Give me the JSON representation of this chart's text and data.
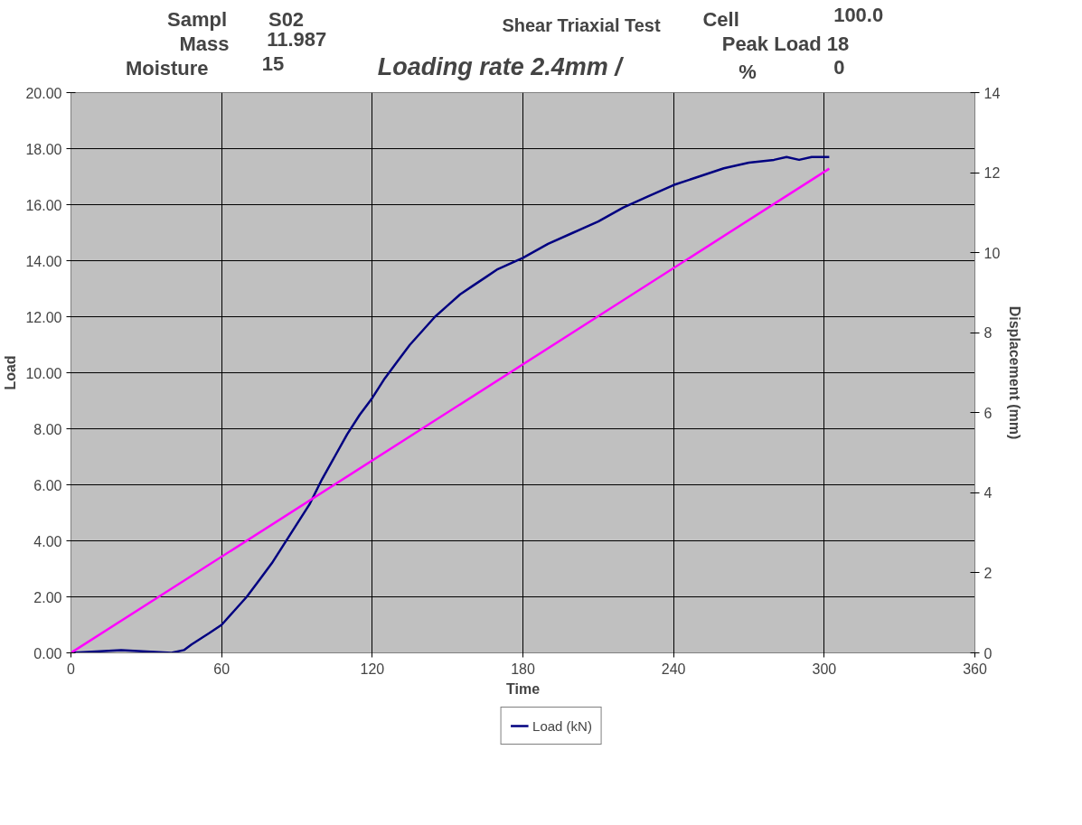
{
  "chart_data": {
    "type": "line",
    "title": "Loading rate 2.4mm /",
    "subtitle": "Shear Triaxial Test",
    "xlabel": "Time",
    "ylabel": "Load",
    "y2label": "Displacement (mm)",
    "annotations": [
      "Sampl",
      "S02",
      "Mass",
      "11.987",
      "Moisture",
      "15",
      "Cell",
      "100.0",
      "Peak Load 18",
      "%",
      "0"
    ],
    "series": [
      {
        "name": "Load (kN)",
        "color": "#000080",
        "x": [
          0,
          20,
          40,
          45,
          48,
          55,
          60,
          65,
          70,
          75,
          80,
          85,
          90,
          95,
          100,
          105,
          110,
          115,
          120,
          125,
          130,
          135,
          140,
          145,
          150,
          155,
          160,
          165,
          170,
          175,
          180,
          190,
          200,
          210,
          220,
          230,
          240,
          250,
          260,
          270,
          280,
          285,
          290,
          295,
          302
        ],
        "values": [
          0,
          0.1,
          0.0,
          0.1,
          0.3,
          0.7,
          1.0,
          1.5,
          2.0,
          2.6,
          3.2,
          3.9,
          4.6,
          5.3,
          6.2,
          7.0,
          7.8,
          8.5,
          9.1,
          9.8,
          10.4,
          11.0,
          11.5,
          12.0,
          12.4,
          12.8,
          13.1,
          13.4,
          13.7,
          13.9,
          14.1,
          14.6,
          15.0,
          15.4,
          15.9,
          16.3,
          16.7,
          17.0,
          17.3,
          17.5,
          17.6,
          17.7,
          17.6,
          17.7,
          17.7
        ]
      },
      {
        "color": "#ff00ff",
        "axis": "y2",
        "x": [
          0,
          302
        ],
        "values": [
          0,
          12.1
        ]
      }
    ],
    "xlim": [
      0,
      360
    ],
    "xticks": [
      0,
      60,
      120,
      180,
      240,
      300,
      360
    ],
    "ylim": [
      0,
      20
    ],
    "yticks": [
      {
        "value": 0,
        "label": "0.00"
      },
      {
        "value": 2,
        "label": "2.00"
      },
      {
        "value": 4,
        "label": "4.00"
      },
      {
        "value": 6,
        "label": "6.00"
      },
      {
        "value": 8,
        "label": "8.00"
      },
      {
        "value": 10,
        "label": "10.00"
      },
      {
        "value": 12,
        "label": "12.00"
      },
      {
        "value": 14,
        "label": "14.00"
      },
      {
        "value": 16,
        "label": "16.00"
      },
      {
        "value": 18,
        "label": "18.00"
      },
      {
        "value": 20,
        "label": "20.00"
      }
    ],
    "y2lim": [
      0,
      14
    ],
    "y2ticks": [
      0,
      2,
      4,
      6,
      8,
      10,
      12,
      14
    ],
    "grid": true,
    "legend": "bottom"
  }
}
